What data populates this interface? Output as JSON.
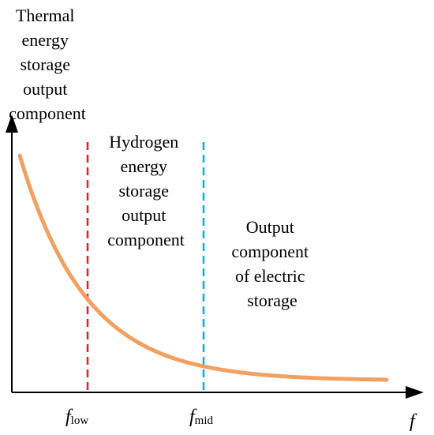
{
  "regions": {
    "thermal": [
      "Thermal",
      "energy",
      "storage",
      "output",
      "component"
    ],
    "hydrogen": [
      "Hydrogen",
      "energy",
      "storage",
      "output",
      "component"
    ],
    "electric": [
      "Output",
      "component",
      "of electric",
      "storage"
    ]
  },
  "axis": {
    "x_symbol": "f",
    "f_low_main": "f",
    "f_low_sub": "low",
    "f_mid_main": "f",
    "f_mid_sub": "mid"
  },
  "colors": {
    "curve": "#f0a060",
    "low_line": "#e0202a",
    "mid_line": "#18a8e0",
    "axis": "#000000"
  },
  "icons": {
    "x_arrow": "arrow-right-icon",
    "y_arrow": "arrow-up-icon"
  }
}
